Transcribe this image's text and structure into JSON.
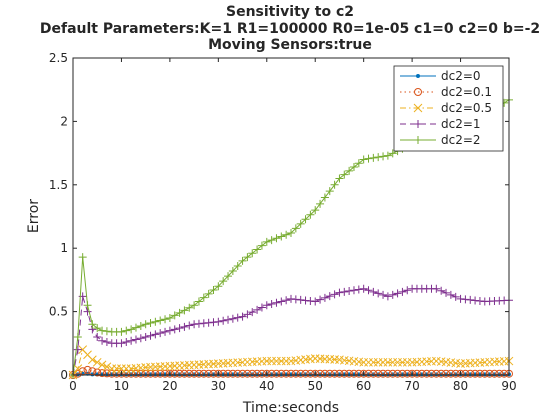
{
  "chart_data": {
    "type": "line",
    "title": [
      "Sensitivity to c2",
      "Default Parameters:K=1 R1=100000 R0=1e-05 c1=0 c2=0 b=-2",
      "Moving Sensors:true"
    ],
    "xlabel": "Time:seconds",
    "ylabel": "Error",
    "xlim": [
      0,
      90
    ],
    "ylim": [
      0,
      2.5
    ],
    "xticks": [
      0,
      10,
      20,
      30,
      40,
      50,
      60,
      70,
      80,
      90
    ],
    "yticks": [
      0,
      0.5,
      1,
      1.5,
      2,
      2.5
    ],
    "xtick_labels": [
      "0",
      "10",
      "20",
      "30",
      "40",
      "50",
      "60",
      "70",
      "80",
      "90"
    ],
    "ytick_labels": [
      "0",
      "0.5",
      "1",
      "1.5",
      "2",
      "2.5"
    ],
    "grid": false,
    "legend_position": "top-right",
    "x": [
      0,
      1,
      2,
      3,
      4,
      5,
      6,
      8,
      10,
      12,
      15,
      20,
      25,
      30,
      35,
      40,
      45,
      50,
      55,
      60,
      65,
      70,
      75,
      80,
      85,
      90
    ],
    "series": [
      {
        "name": "dc2=0",
        "color": "#0072BD",
        "line": "solid",
        "marker": "dot",
        "values": [
          0,
          0.005,
          0.01,
          0.01,
          0.005,
          0.005,
          0.005,
          0.005,
          0.005,
          0.005,
          0.005,
          0.005,
          0.005,
          0.005,
          0.005,
          0.005,
          0.005,
          0.005,
          0.005,
          0.005,
          0.005,
          0.005,
          0.005,
          0.005,
          0.005,
          0.005
        ]
      },
      {
        "name": "dc2=0.1",
        "color": "#D95319",
        "line": "dotted",
        "marker": "circle",
        "values": [
          0,
          0.01,
          0.03,
          0.04,
          0.03,
          0.02,
          0.015,
          0.01,
          0.01,
          0.01,
          0.01,
          0.01,
          0.01,
          0.01,
          0.01,
          0.01,
          0.01,
          0.01,
          0.01,
          0.01,
          0.01,
          0.01,
          0.01,
          0.01,
          0.01,
          0.01
        ]
      },
      {
        "name": "dc2=0.5",
        "color": "#EDB120",
        "line": "dashdot",
        "marker": "x",
        "values": [
          0,
          0.05,
          0.2,
          0.16,
          0.12,
          0.1,
          0.08,
          0.05,
          0.05,
          0.05,
          0.06,
          0.07,
          0.08,
          0.09,
          0.1,
          0.11,
          0.11,
          0.13,
          0.12,
          0.1,
          0.1,
          0.1,
          0.11,
          0.09,
          0.1,
          0.11
        ]
      },
      {
        "name": "dc2=1",
        "color": "#7E2F8E",
        "line": "dashed",
        "marker": "plus",
        "values": [
          0,
          0.2,
          0.62,
          0.5,
          0.36,
          0.3,
          0.27,
          0.25,
          0.25,
          0.27,
          0.3,
          0.35,
          0.4,
          0.42,
          0.46,
          0.55,
          0.6,
          0.58,
          0.65,
          0.68,
          0.62,
          0.68,
          0.68,
          0.6,
          0.58,
          0.59
        ]
      },
      {
        "name": "dc2=2",
        "color": "#77AC30",
        "line": "solid",
        "marker": "plus",
        "values": [
          0,
          0.3,
          0.93,
          0.55,
          0.4,
          0.37,
          0.35,
          0.34,
          0.34,
          0.36,
          0.4,
          0.45,
          0.55,
          0.7,
          0.9,
          1.05,
          1.12,
          1.3,
          1.55,
          1.7,
          1.73,
          1.82,
          1.88,
          1.95,
          2.05,
          2.17
        ]
      }
    ]
  }
}
